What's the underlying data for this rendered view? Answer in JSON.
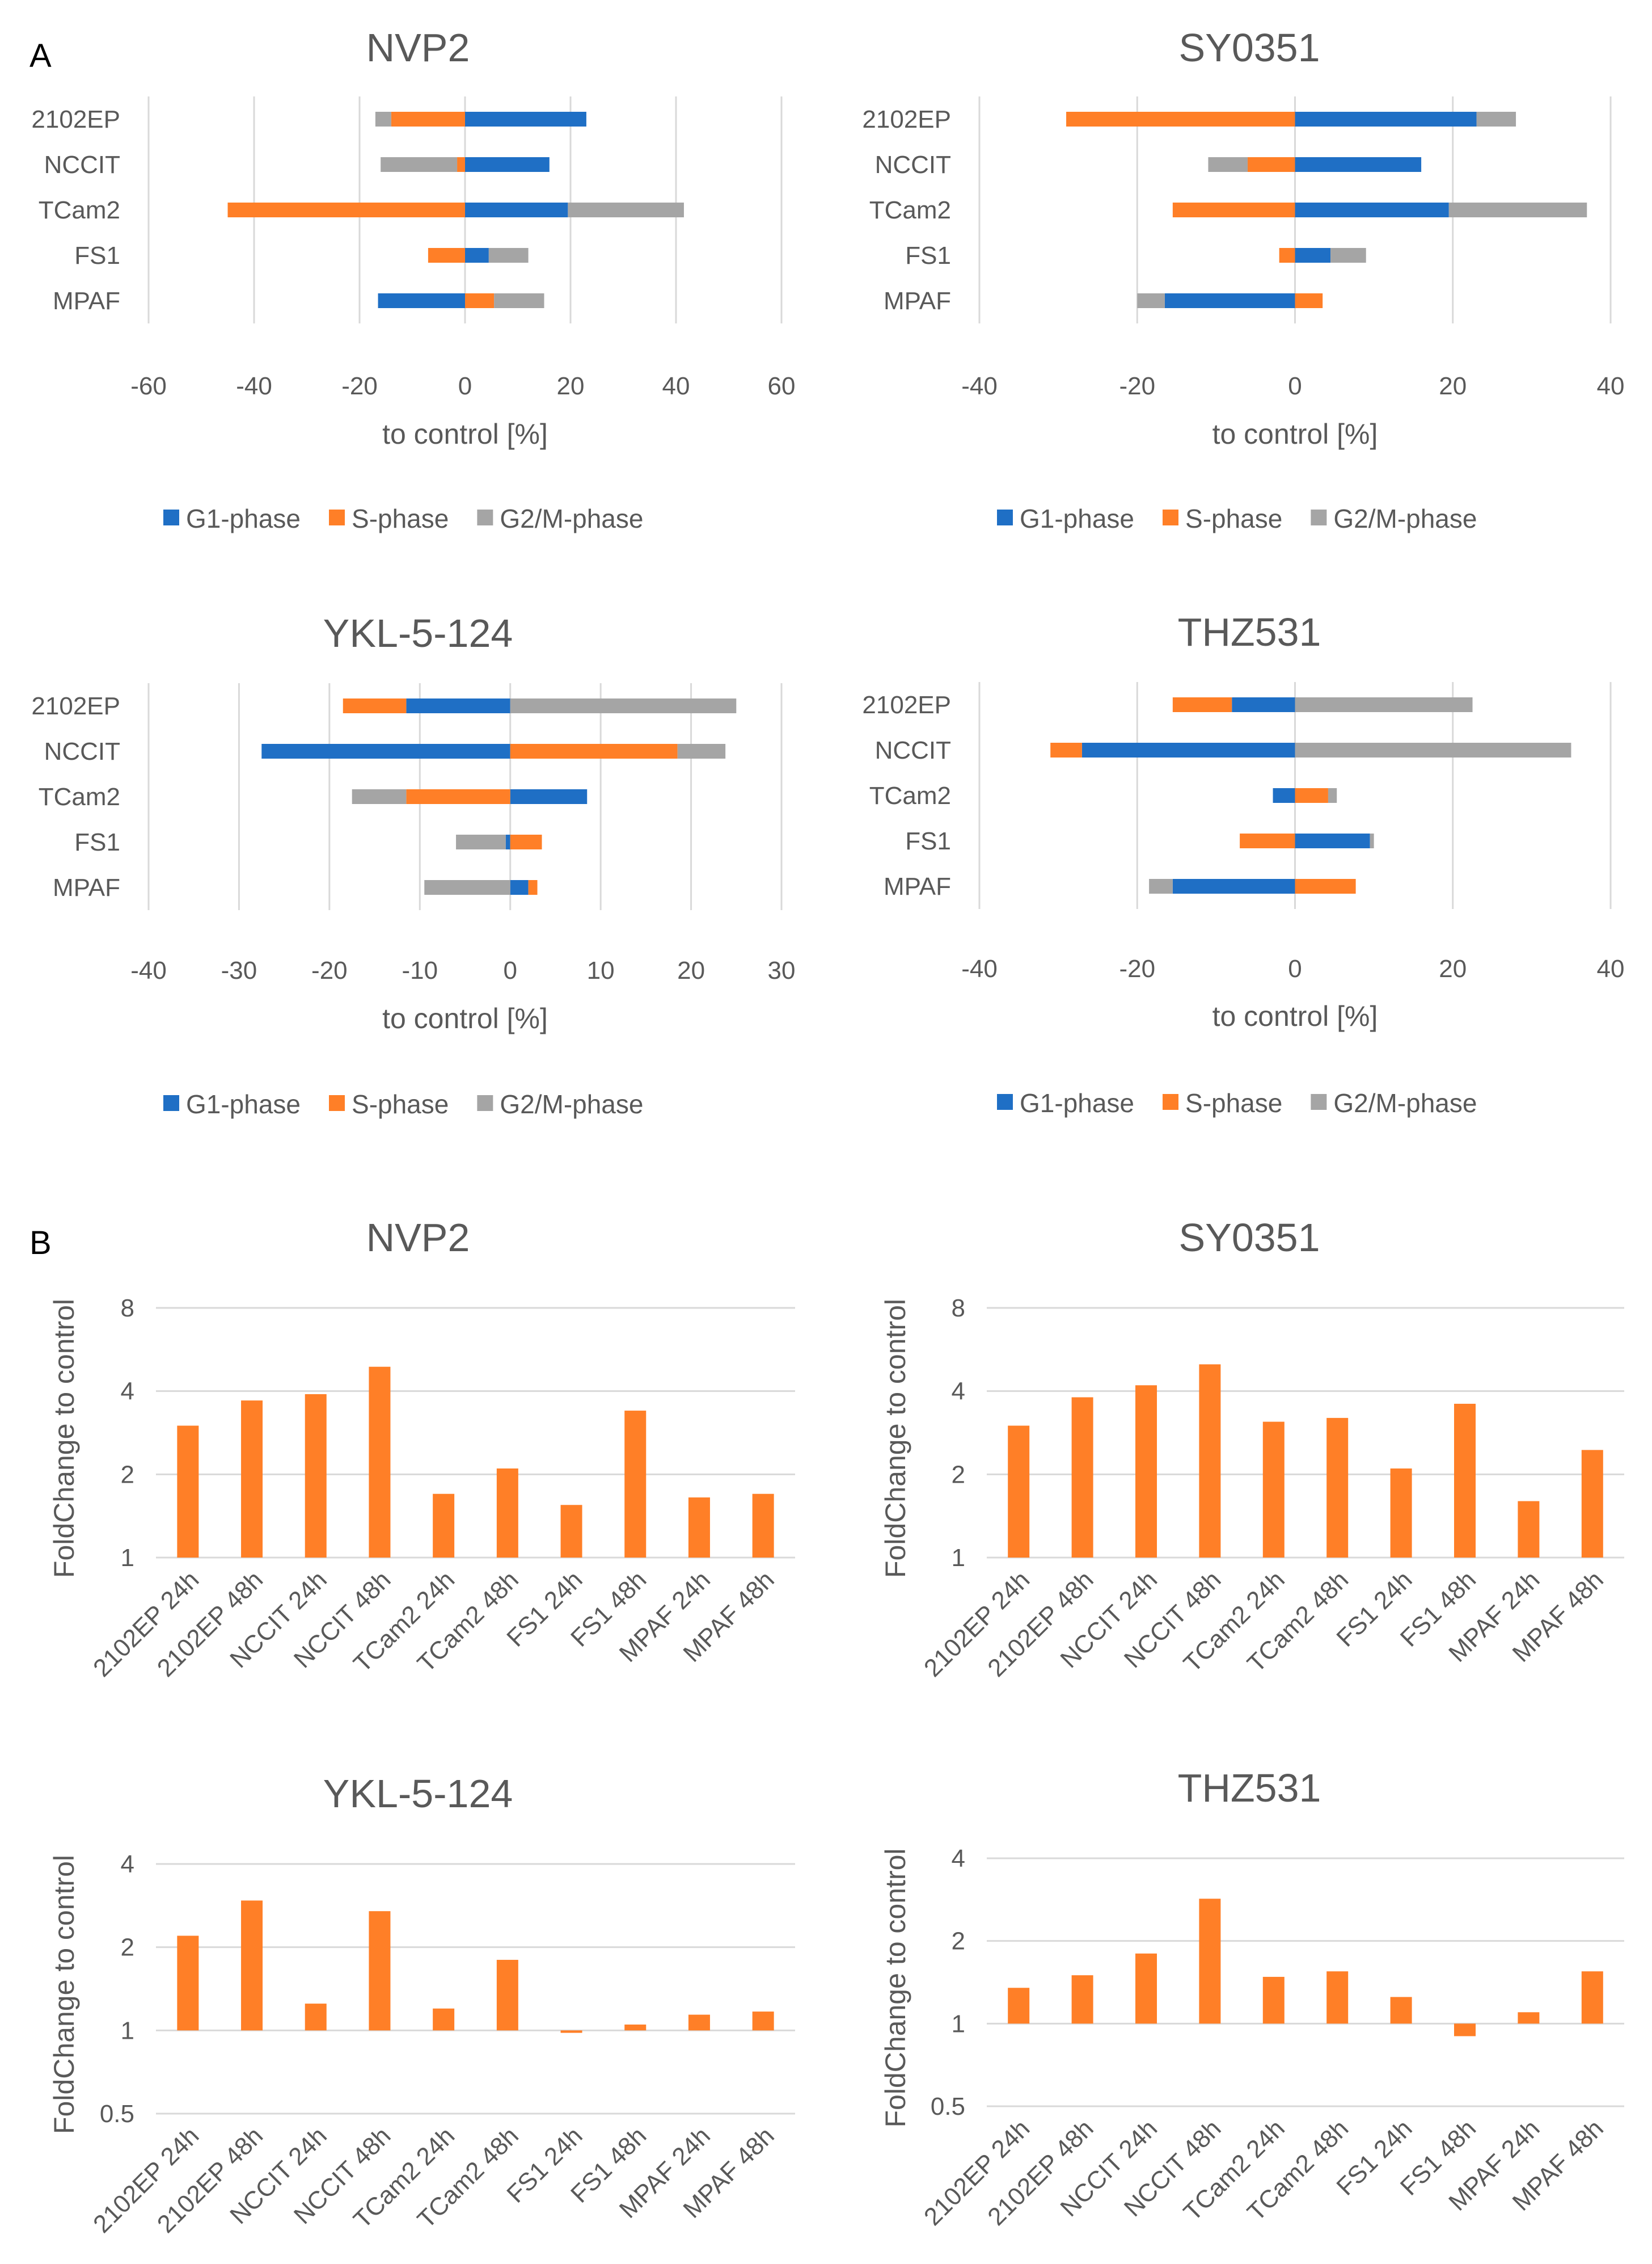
{
  "figure": {
    "panel_labels": [
      "A",
      "B"
    ],
    "colors": {
      "g1": "#1f6fc5",
      "s": "#ff7f27",
      "g2m": "#a5a5a5",
      "grid": "#d9d9d9",
      "text": "#595959",
      "bar": "#ff7f27"
    }
  },
  "chart_data": [
    {
      "type": "bar",
      "orientation": "horizontal",
      "stacked": true,
      "title": "NVP2",
      "xlabel": "to control [%]",
      "categories": [
        "2102EP",
        "NCCIT",
        "TCam2",
        "FS1",
        "MPAF"
      ],
      "xlim": [
        -60,
        60
      ],
      "xticks": [
        -60,
        -40,
        -20,
        0,
        20,
        40,
        60
      ],
      "grid": true,
      "legend": "bottom",
      "series": [
        {
          "name": "G1-phase",
          "values": [
            23,
            16,
            19.5,
            4.5,
            -16.5
          ]
        },
        {
          "name": "S-phase",
          "values": [
            -14,
            -1.5,
            -45,
            -7,
            5.5
          ]
        },
        {
          "name": "G2/M-phase",
          "values": [
            -3,
            -14.5,
            22,
            7.5,
            9.5
          ]
        }
      ]
    },
    {
      "type": "bar",
      "orientation": "horizontal",
      "stacked": true,
      "title": "SY0351",
      "xlabel": "to control [%]",
      "categories": [
        "2102EP",
        "NCCIT",
        "TCam2",
        "FS1",
        "MPAF"
      ],
      "xlim": [
        -40,
        40
      ],
      "xticks": [
        -40,
        -20,
        0,
        20,
        40
      ],
      "grid": true,
      "legend": "bottom",
      "series": [
        {
          "name": "G1-phase",
          "values": [
            23,
            16,
            19.5,
            4.5,
            -16.5
          ]
        },
        {
          "name": "S-phase",
          "values": [
            -29,
            -6,
            -15.5,
            -2,
            3.5
          ]
        },
        {
          "name": "G2/M-phase",
          "values": [
            5,
            -5,
            17.5,
            4.5,
            -3.5
          ]
        }
      ]
    },
    {
      "type": "bar",
      "orientation": "horizontal",
      "stacked": true,
      "title": "YKL-5-124",
      "xlabel": "to control [%]",
      "categories": [
        "2102EP",
        "NCCIT",
        "TCam2",
        "FS1",
        "MPAF"
      ],
      "xlim": [
        -40,
        30
      ],
      "xticks": [
        -40,
        -30,
        -20,
        -10,
        0,
        10,
        20,
        30
      ],
      "grid": true,
      "legend": "bottom",
      "series": [
        {
          "name": "G1-phase",
          "values": [
            -11.5,
            -27.5,
            8.5,
            -0.5,
            2
          ]
        },
        {
          "name": "S-phase",
          "values": [
            -7,
            18.5,
            -11.5,
            3.5,
            1
          ]
        },
        {
          "name": "G2/M-phase",
          "values": [
            25,
            5.3,
            -6,
            -5.5,
            -9.5
          ]
        }
      ]
    },
    {
      "type": "bar",
      "orientation": "horizontal",
      "stacked": true,
      "title": "THZ531",
      "xlabel": "to control [%]",
      "categories": [
        "2102EP",
        "NCCIT",
        "TCam2",
        "FS1",
        "MPAF"
      ],
      "xlim": [
        -40,
        40
      ],
      "xticks": [
        -40,
        -20,
        0,
        20,
        40
      ],
      "grid": true,
      "legend": "bottom",
      "series": [
        {
          "name": "G1-phase",
          "values": [
            -8,
            -27,
            -2.8,
            9.5,
            -15.5
          ]
        },
        {
          "name": "S-phase",
          "values": [
            -7.5,
            -4,
            4.2,
            -7,
            7.7
          ]
        },
        {
          "name": "G2/M-phase",
          "values": [
            22.5,
            35,
            1.1,
            0.5,
            -3
          ]
        }
      ]
    },
    {
      "type": "bar",
      "title": "NVP2",
      "ylabel": "FoldChange to control",
      "yscale": "log2",
      "ylim": [
        1,
        8
      ],
      "yticks": [
        1,
        2,
        4,
        8
      ],
      "grid": true,
      "categories": [
        "2102EP 24h",
        "2102EP 48h",
        "NCCIT 24h",
        "NCCIT 48h",
        "TCam2 24h",
        "TCam2 48h",
        "FS1 24h",
        "FS1 48h",
        "MPAF 24h",
        "MPAF 48h"
      ],
      "values": [
        3.0,
        3.7,
        3.9,
        4.9,
        1.7,
        2.1,
        1.55,
        3.4,
        1.65,
        1.7
      ]
    },
    {
      "type": "bar",
      "title": "SY0351",
      "ylabel": "FoldChange to control",
      "yscale": "log2",
      "ylim": [
        1,
        8
      ],
      "yticks": [
        1,
        2,
        4,
        8
      ],
      "grid": true,
      "categories": [
        "2102EP 24h",
        "2102EP 48h",
        "NCCIT 24h",
        "NCCIT 48h",
        "TCam2 24h",
        "TCam2 48h",
        "FS1 24h",
        "FS1 48h",
        "MPAF 24h",
        "MPAF 48h"
      ],
      "values": [
        3.0,
        3.8,
        4.2,
        5.0,
        3.1,
        3.2,
        2.1,
        3.6,
        1.6,
        2.45
      ]
    },
    {
      "type": "bar",
      "title": "YKL-5-124",
      "ylabel": "FoldChange to control",
      "yscale": "log2",
      "ylim": [
        0.5,
        4
      ],
      "yticks": [
        0.5,
        1,
        2,
        4
      ],
      "grid": true,
      "categories": [
        "2102EP 24h",
        "2102EP 48h",
        "NCCIT 24h",
        "NCCIT 48h",
        "TCam2 24h",
        "TCam2 48h",
        "FS1 24h",
        "FS1 48h",
        "MPAF 24h",
        "MPAF 48h"
      ],
      "values": [
        2.2,
        2.95,
        1.25,
        2.7,
        1.2,
        1.8,
        0.98,
        1.05,
        1.14,
        1.17
      ]
    },
    {
      "type": "bar",
      "title": "THZ531",
      "ylabel": "FoldChange to control",
      "yscale": "log2",
      "ylim": [
        0.5,
        4
      ],
      "yticks": [
        0.5,
        1,
        2,
        4
      ],
      "grid": true,
      "categories": [
        "2102EP 24h",
        "2102EP 48h",
        "NCCIT 24h",
        "NCCIT 48h",
        "TCam2 24h",
        "TCam2 48h",
        "FS1 24h",
        "FS1 48h",
        "MPAF 24h",
        "MPAF 48h"
      ],
      "values": [
        1.35,
        1.5,
        1.8,
        2.85,
        1.48,
        1.55,
        1.25,
        0.9,
        1.1,
        1.55
      ]
    }
  ]
}
